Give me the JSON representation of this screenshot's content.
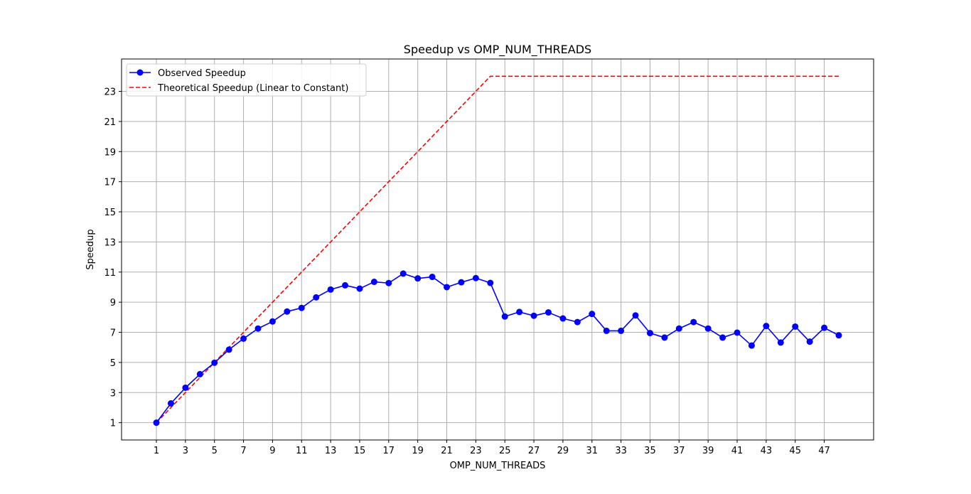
{
  "chart_data": {
    "type": "line",
    "title": "Speedup vs OMP_NUM_THREADS",
    "xlabel": "OMP_NUM_THREADS",
    "ylabel": "Speedup",
    "xlim": [
      -1.4,
      50.4
    ],
    "ylim": [
      -0.15,
      25.15
    ],
    "x_ticks": [
      1,
      3,
      5,
      7,
      9,
      11,
      13,
      15,
      17,
      19,
      21,
      23,
      25,
      27,
      29,
      31,
      33,
      35,
      37,
      39,
      41,
      43,
      45,
      47
    ],
    "y_ticks": [
      1,
      3,
      5,
      7,
      9,
      11,
      13,
      15,
      17,
      19,
      21,
      23
    ],
    "grid": true,
    "legend_position": "upper-left",
    "x": [
      1,
      2,
      3,
      4,
      5,
      6,
      7,
      8,
      9,
      10,
      11,
      12,
      13,
      14,
      15,
      16,
      17,
      18,
      19,
      20,
      21,
      22,
      23,
      24,
      25,
      26,
      27,
      28,
      29,
      30,
      31,
      32,
      33,
      34,
      35,
      36,
      37,
      38,
      39,
      40,
      41,
      42,
      43,
      44,
      45,
      46,
      47,
      48
    ],
    "series": [
      {
        "name": "Observed Speedup",
        "color": "#0000ff",
        "style": "solid",
        "marker": "circle",
        "values": [
          1.0,
          2.28,
          3.32,
          4.22,
          4.98,
          5.85,
          6.58,
          7.25,
          7.72,
          8.38,
          8.62,
          9.32,
          9.84,
          10.12,
          9.9,
          10.35,
          10.27,
          10.9,
          10.58,
          10.68,
          10.0,
          10.32,
          10.6,
          10.28,
          8.05,
          8.35,
          8.1,
          8.32,
          7.92,
          7.68,
          8.22,
          7.1,
          7.1,
          8.12,
          6.95,
          6.65,
          7.25,
          7.68,
          7.25,
          6.65,
          6.98,
          6.12,
          7.42,
          6.32,
          7.38,
          6.38,
          7.3,
          6.8
        ]
      },
      {
        "name": "Theoretical Speedup (Linear to Constant)",
        "color": "#ff0000",
        "style": "dashed",
        "marker": "none",
        "values": [
          1,
          2,
          3,
          4,
          5,
          6,
          7,
          8,
          9,
          10,
          11,
          12,
          13,
          14,
          15,
          16,
          17,
          18,
          19,
          20,
          21,
          22,
          23,
          24,
          24,
          24,
          24,
          24,
          24,
          24,
          24,
          24,
          24,
          24,
          24,
          24,
          24,
          24,
          24,
          24,
          24,
          24,
          24,
          24,
          24,
          24,
          24,
          24
        ]
      }
    ]
  }
}
